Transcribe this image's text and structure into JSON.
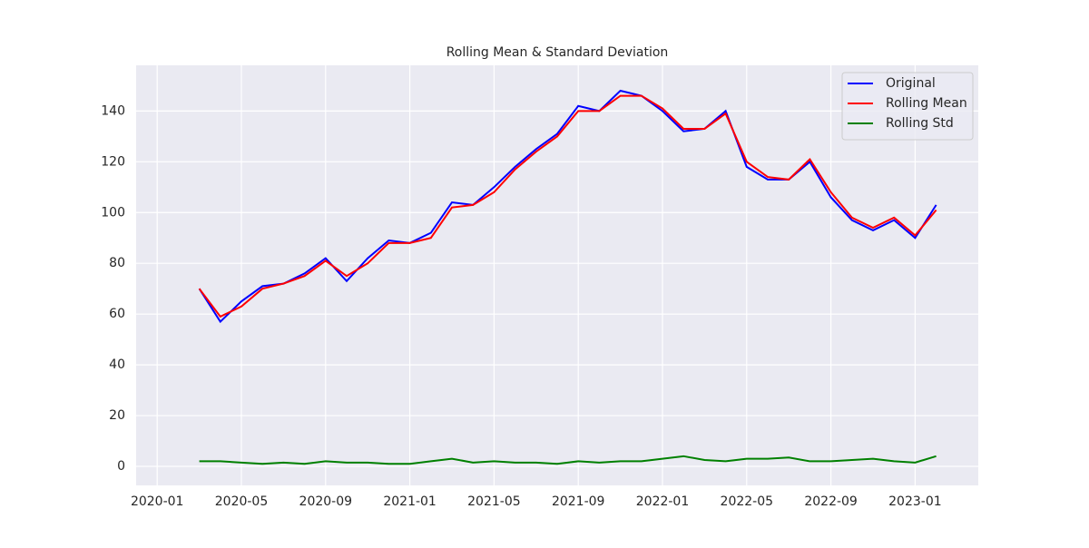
{
  "chart_data": {
    "type": "line",
    "title": "Rolling Mean & Standard Deviation",
    "x": [
      "2020-03",
      "2020-04",
      "2020-05",
      "2020-06",
      "2020-07",
      "2020-08",
      "2020-09",
      "2020-10",
      "2020-11",
      "2020-12",
      "2021-01",
      "2021-02",
      "2021-03",
      "2021-04",
      "2021-05",
      "2021-06",
      "2021-07",
      "2021-08",
      "2021-09",
      "2021-10",
      "2021-11",
      "2021-12",
      "2022-01",
      "2022-02",
      "2022-03",
      "2022-04",
      "2022-05",
      "2022-06",
      "2022-07",
      "2022-08",
      "2022-09",
      "2022-10",
      "2022-11",
      "2022-12",
      "2023-01",
      "2023-02"
    ],
    "series": [
      {
        "name": "Original",
        "color": "#0000ff",
        "values": [
          70,
          57,
          65,
          71,
          72,
          76,
          82,
          73,
          82,
          89,
          88,
          92,
          104,
          103,
          110,
          118,
          125,
          131,
          142,
          140,
          148,
          146,
          140,
          132,
          133,
          140,
          118,
          113,
          113,
          120,
          106,
          97,
          93,
          97,
          90,
          103
        ]
      },
      {
        "name": "Rolling Mean",
        "color": "#ff0000",
        "values": [
          70,
          59,
          63,
          70,
          72,
          75,
          81,
          75,
          80,
          88,
          88,
          90,
          102,
          103,
          108,
          117,
          124,
          130,
          140,
          140,
          146,
          146,
          141,
          133,
          133,
          139,
          120,
          114,
          113,
          121,
          108,
          98,
          94,
          98,
          91,
          101
        ]
      },
      {
        "name": "Rolling Std",
        "color": "#008000",
        "values": [
          2,
          2,
          1.5,
          1,
          1.5,
          1,
          2,
          1.5,
          1.5,
          1,
          1,
          2,
          3,
          1.5,
          2,
          1.5,
          1.5,
          1,
          2,
          1.5,
          2,
          2,
          3,
          4,
          2.5,
          2,
          3,
          3,
          3.5,
          2,
          2,
          2.5,
          3,
          2,
          1.5,
          4
        ]
      }
    ],
    "xlim": [
      "2019-12",
      "2023-04"
    ],
    "xticks": [
      "2020-01",
      "2020-05",
      "2020-09",
      "2021-01",
      "2021-05",
      "2021-09",
      "2022-01",
      "2022-05",
      "2022-09",
      "2023-01"
    ],
    "ylim": [
      -7.5,
      158
    ],
    "yticks": [
      0,
      20,
      40,
      60,
      80,
      100,
      120,
      140
    ],
    "grid": true,
    "legend": "upper-right"
  }
}
